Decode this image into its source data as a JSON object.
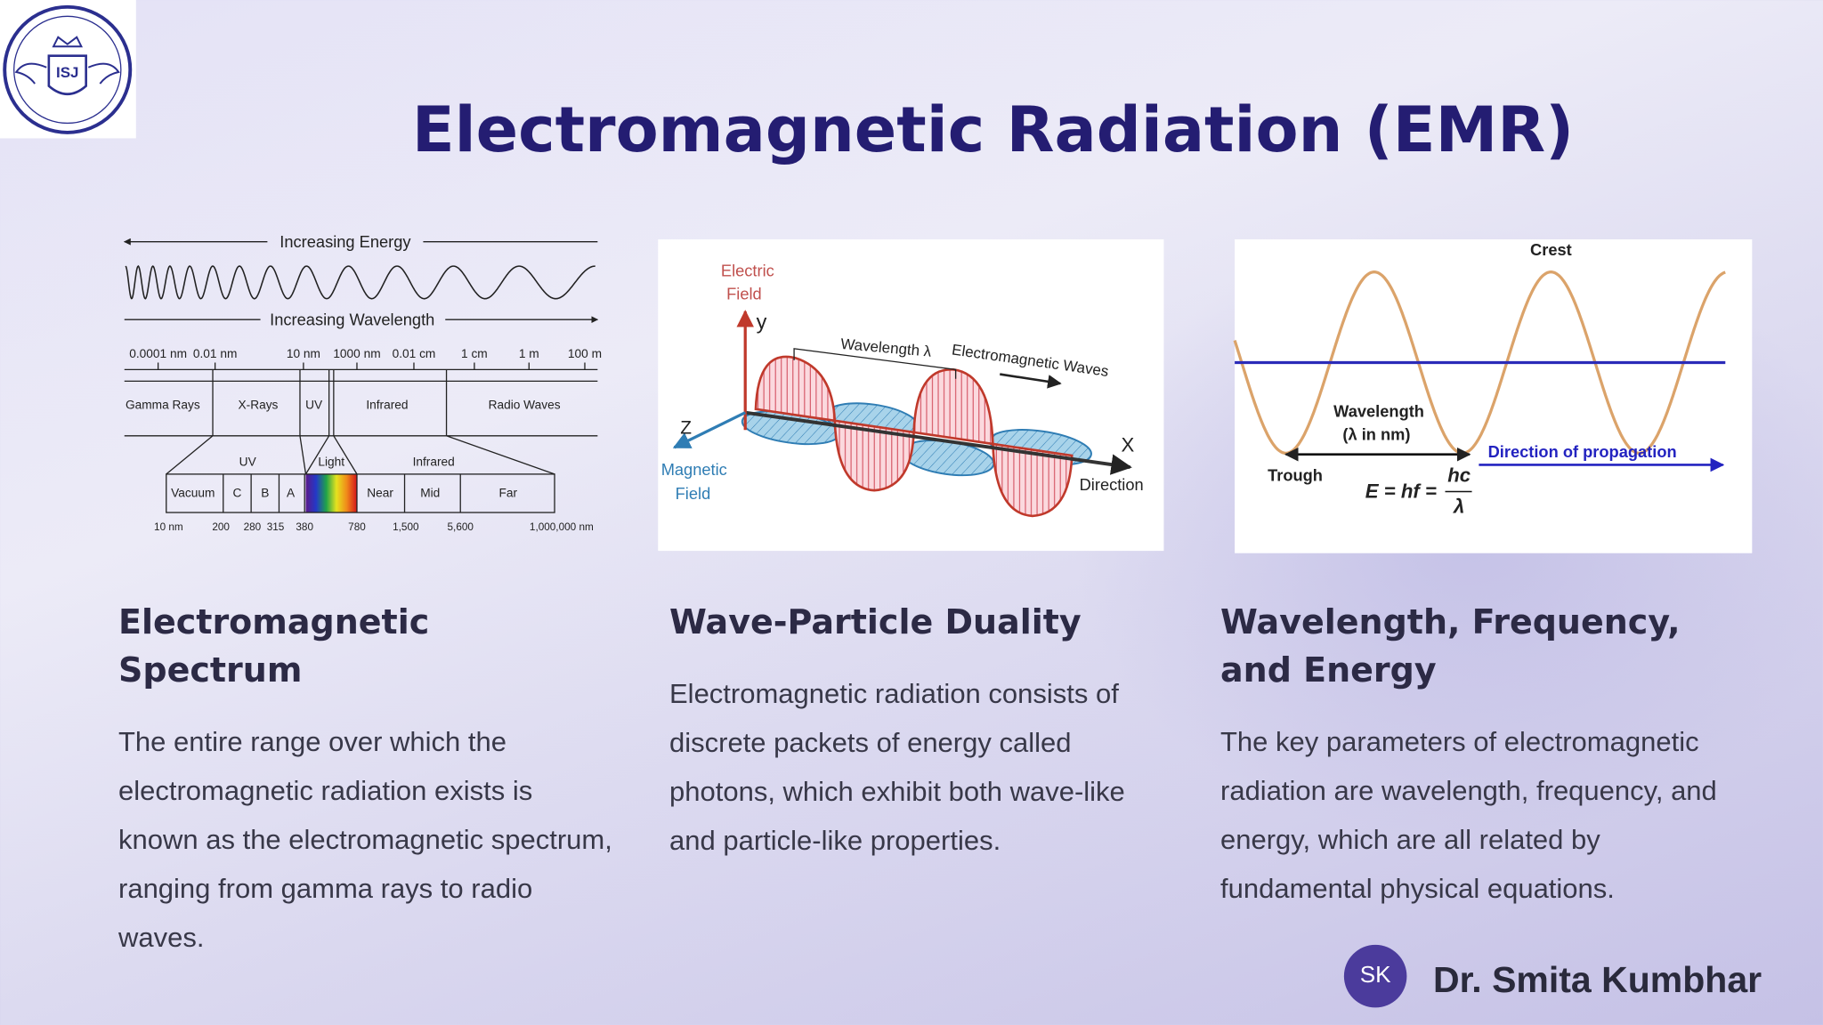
{
  "logo": {
    "text": "ISJ"
  },
  "header": {
    "title": "Electromagnetic Radiation (EMR)"
  },
  "figures": {
    "spectrum": {
      "energy_label": "Increasing Energy",
      "wavelength_label": "Increasing Wavelength",
      "scale": [
        "0.0001 nm",
        "0.01 nm",
        "10 nm",
        "1000 nm",
        "0.01 cm",
        "1 cm",
        "1 m",
        "100 m"
      ],
      "bands": [
        "Gamma Rays",
        "X-Rays",
        "UV",
        "Infrared",
        "Radio Waves"
      ],
      "sub_groups": [
        "UV",
        "Light",
        "Infrared"
      ],
      "sub_bands": [
        "Vacuum",
        "C",
        "B",
        "A",
        "Near",
        "Mid",
        "Far"
      ],
      "boundaries": [
        "10 nm",
        "200",
        "280",
        "315",
        "380",
        "780",
        "1,500",
        "5,600",
        "1,000,000 nm"
      ]
    },
    "wave": {
      "electric_field": [
        "Electric",
        "Field"
      ],
      "y_axis": "y",
      "wavelength": "Wavelength λ",
      "waves": "Electromagnetic Waves",
      "z_axis": "Z",
      "magnetic_field": [
        "Magnetic",
        "Field"
      ],
      "x_axis": "X",
      "direction": "Direction"
    },
    "propagation": {
      "crest": "Crest",
      "wavelength": [
        "Wavelength",
        "(λ in nm)"
      ],
      "trough": "Trough",
      "direction": "Direction of propagation",
      "equation": {
        "lhs": "E = hf =",
        "numerator": "hc",
        "denominator": "λ"
      }
    }
  },
  "cards": [
    {
      "heading": "Electromagnetic Spectrum",
      "body": "The entire range over which the electromagnetic radiation exists is known as the electromagnetic spectrum, ranging from gamma rays to radio waves."
    },
    {
      "heading": "Wave-Particle Duality",
      "body": "Electromagnetic radiation consists of discrete packets of energy called photons, which exhibit both wave-like and particle-like properties."
    },
    {
      "heading": "Wavelength, Frequency, and Energy",
      "body": "The key parameters of electromagnetic radiation are wavelength, frequency, and energy, which are all related by fundamental physical equations."
    }
  ],
  "footer": {
    "initials": "SK",
    "name": "Dr. Smita Kumbhar"
  }
}
